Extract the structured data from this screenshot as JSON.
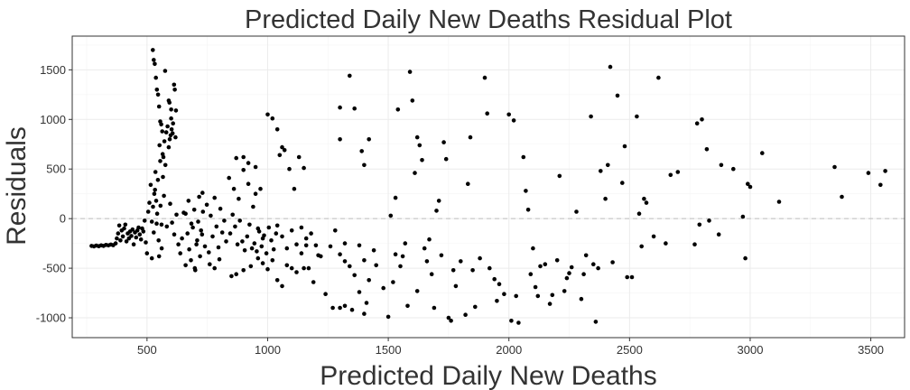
{
  "chart_data": {
    "type": "scatter",
    "title": "Predicted Daily New Deaths Residual Plot",
    "xlabel": "Predicted Daily New Deaths",
    "ylabel": "Residuals",
    "xlim": [
      190,
      3640
    ],
    "ylim": [
      -1200,
      1840
    ],
    "xticks": [
      500,
      1000,
      1500,
      2000,
      2500,
      3000,
      3500
    ],
    "yticks": [
      -1000,
      -500,
      0,
      500,
      1000,
      1500
    ],
    "xtick_labels": [
      "500",
      "1000",
      "1500",
      "2000",
      "2500",
      "3000",
      "3500"
    ],
    "ytick_labels": [
      "-1000",
      "-500",
      "0",
      "500",
      "1000",
      "1500"
    ],
    "reference_line_y": 0,
    "grid": true,
    "point_color": "#000000",
    "points": [
      [
        270,
        -275
      ],
      [
        280,
        -280
      ],
      [
        290,
        -272
      ],
      [
        300,
        -278
      ],
      [
        310,
        -270
      ],
      [
        320,
        -275
      ],
      [
        330,
        -265
      ],
      [
        340,
        -270
      ],
      [
        350,
        -262
      ],
      [
        360,
        -268
      ],
      [
        370,
        -250
      ],
      [
        375,
        -200
      ],
      [
        380,
        -150
      ],
      [
        385,
        -70
      ],
      [
        390,
        -220
      ],
      [
        395,
        -120
      ],
      [
        400,
        -180
      ],
      [
        405,
        -100
      ],
      [
        410,
        -60
      ],
      [
        415,
        -230
      ],
      [
        420,
        -150
      ],
      [
        425,
        -200
      ],
      [
        430,
        -130
      ],
      [
        435,
        -175
      ],
      [
        440,
        -110
      ],
      [
        445,
        -260
      ],
      [
        450,
        -140
      ],
      [
        455,
        -190
      ],
      [
        460,
        -120
      ],
      [
        465,
        -90
      ],
      [
        470,
        -160
      ],
      [
        475,
        -210
      ],
      [
        480,
        -100
      ],
      [
        485,
        -130
      ],
      [
        490,
        -20
      ],
      [
        495,
        -240
      ],
      [
        500,
        -350
      ],
      [
        505,
        70
      ],
      [
        510,
        160
      ],
      [
        515,
        340
      ],
      [
        520,
        -400
      ],
      [
        525,
        120
      ],
      [
        530,
        250
      ],
      [
        535,
        470
      ],
      [
        540,
        -50
      ],
      [
        545,
        390
      ],
      [
        550,
        -380
      ],
      [
        555,
        580
      ],
      [
        560,
        -60
      ],
      [
        565,
        650
      ],
      [
        520,
        -30
      ],
      [
        528,
        -140
      ],
      [
        533,
        290
      ],
      [
        538,
        180
      ],
      [
        542,
        50
      ],
      [
        548,
        -220
      ],
      [
        552,
        740
      ],
      [
        556,
        130
      ],
      [
        561,
        -300
      ],
      [
        566,
        420
      ],
      [
        524,
        1700
      ],
      [
        528,
        1600
      ],
      [
        532,
        1560
      ],
      [
        537,
        1420
      ],
      [
        541,
        1300
      ],
      [
        546,
        1250
      ],
      [
        550,
        1130
      ],
      [
        555,
        980
      ],
      [
        559,
        950
      ],
      [
        563,
        880
      ],
      [
        568,
        620
      ],
      [
        572,
        780
      ],
      [
        576,
        540
      ],
      [
        580,
        870
      ],
      [
        585,
        930
      ],
      [
        590,
        720
      ],
      [
        594,
        800
      ],
      [
        598,
        840
      ],
      [
        602,
        900
      ],
      [
        606,
        860
      ],
      [
        575,
        1490
      ],
      [
        590,
        1190
      ],
      [
        600,
        1100
      ],
      [
        612,
        1350
      ],
      [
        615,
        1300
      ],
      [
        600,
        1010
      ],
      [
        593,
        1170
      ],
      [
        620,
        1090
      ],
      [
        608,
        960
      ],
      [
        618,
        820
      ],
      [
        570,
        230
      ],
      [
        582,
        -80
      ],
      [
        596,
        150
      ],
      [
        604,
        -40
      ],
      [
        613,
        -160
      ],
      [
        622,
        40
      ],
      [
        630,
        -260
      ],
      [
        638,
        -350
      ],
      [
        645,
        -200
      ],
      [
        652,
        60
      ],
      [
        660,
        -470
      ],
      [
        668,
        -150
      ],
      [
        675,
        -310
      ],
      [
        682,
        -420
      ],
      [
        690,
        -90
      ],
      [
        698,
        -500
      ],
      [
        705,
        -260
      ],
      [
        712,
        -30
      ],
      [
        720,
        -380
      ],
      [
        728,
        -160
      ],
      [
        660,
        50
      ],
      [
        672,
        180
      ],
      [
        684,
        -50
      ],
      [
        696,
        90
      ],
      [
        708,
        -220
      ],
      [
        716,
        220
      ],
      [
        724,
        -120
      ],
      [
        732,
        70
      ],
      [
        740,
        -280
      ],
      [
        748,
        140
      ],
      [
        756,
        -340
      ],
      [
        764,
        30
      ],
      [
        772,
        -180
      ],
      [
        780,
        210
      ],
      [
        788,
        -80
      ],
      [
        796,
        -290
      ],
      [
        804,
        100
      ],
      [
        812,
        -140
      ],
      [
        820,
        -20
      ],
      [
        828,
        -230
      ],
      [
        700,
        -520
      ],
      [
        760,
        -460
      ],
      [
        800,
        -410
      ],
      [
        730,
        260
      ],
      [
        780,
        -500
      ],
      [
        850,
        -580
      ],
      [
        870,
        -560
      ],
      [
        900,
        -520
      ],
      [
        930,
        -480
      ],
      [
        960,
        -400
      ],
      [
        840,
        410
      ],
      [
        860,
        300
      ],
      [
        880,
        200
      ],
      [
        900,
        490
      ],
      [
        920,
        350
      ],
      [
        940,
        120
      ],
      [
        950,
        250
      ],
      [
        960,
        -100
      ],
      [
        970,
        300
      ],
      [
        980,
        -200
      ],
      [
        845,
        -150
      ],
      [
        855,
        40
      ],
      [
        865,
        -80
      ],
      [
        875,
        -260
      ],
      [
        885,
        -20
      ],
      [
        895,
        -230
      ],
      [
        905,
        -320
      ],
      [
        915,
        -180
      ],
      [
        925,
        -60
      ],
      [
        935,
        -300
      ],
      [
        945,
        -250
      ],
      [
        955,
        -330
      ],
      [
        965,
        -130
      ],
      [
        975,
        -280
      ],
      [
        985,
        -170
      ],
      [
        995,
        -350
      ],
      [
        1005,
        -90
      ],
      [
        1015,
        -220
      ],
      [
        1025,
        -310
      ],
      [
        1035,
        -150
      ],
      [
        870,
        610
      ],
      [
        900,
        620
      ],
      [
        920,
        560
      ],
      [
        950,
        520
      ],
      [
        980,
        -450
      ],
      [
        1000,
        1050
      ],
      [
        1020,
        1010
      ],
      [
        1040,
        900
      ],
      [
        1050,
        640
      ],
      [
        1060,
        720
      ],
      [
        1000,
        -510
      ],
      [
        1020,
        -420
      ],
      [
        1040,
        -620
      ],
      [
        1060,
        -680
      ],
      [
        1080,
        -470
      ],
      [
        1100,
        -500
      ],
      [
        1120,
        -540
      ],
      [
        1140,
        -350
      ],
      [
        1150,
        -500
      ],
      [
        1160,
        -270
      ],
      [
        1040,
        -70
      ],
      [
        1060,
        -180
      ],
      [
        1080,
        -300
      ],
      [
        1100,
        -120
      ],
      [
        1120,
        -260
      ],
      [
        1140,
        -90
      ],
      [
        1160,
        -200
      ],
      [
        1180,
        -150
      ],
      [
        1200,
        -270
      ],
      [
        1220,
        -380
      ],
      [
        1070,
        690
      ],
      [
        1090,
        500
      ],
      [
        1110,
        300
      ],
      [
        1130,
        620
      ],
      [
        1150,
        510
      ],
      [
        1170,
        -500
      ],
      [
        1190,
        -640
      ],
      [
        1210,
        -370
      ],
      [
        1240,
        -760
      ],
      [
        1270,
        -900
      ],
      [
        1300,
        1120
      ],
      [
        1300,
        800
      ],
      [
        1320,
        -430
      ],
      [
        1340,
        1440
      ],
      [
        1360,
        1110
      ],
      [
        1380,
        -740
      ],
      [
        1390,
        680
      ],
      [
        1400,
        540
      ],
      [
        1410,
        -850
      ],
      [
        1420,
        800
      ],
      [
        1260,
        -280
      ],
      [
        1280,
        -120
      ],
      [
        1300,
        -360
      ],
      [
        1320,
        -250
      ],
      [
        1340,
        -480
      ],
      [
        1360,
        -570
      ],
      [
        1380,
        -270
      ],
      [
        1400,
        -420
      ],
      [
        1420,
        -620
      ],
      [
        1440,
        -320
      ],
      [
        1300,
        -900
      ],
      [
        1320,
        -880
      ],
      [
        1350,
        -920
      ],
      [
        1400,
        -960
      ],
      [
        1450,
        -470
      ],
      [
        1480,
        -700
      ],
      [
        1500,
        -990
      ],
      [
        1510,
        30
      ],
      [
        1520,
        -640
      ],
      [
        1530,
        -360
      ],
      [
        1530,
        210
      ],
      [
        1540,
        1100
      ],
      [
        1550,
        -480
      ],
      [
        1560,
        -380
      ],
      [
        1570,
        -250
      ],
      [
        1580,
        -880
      ],
      [
        1590,
        1480
      ],
      [
        1600,
        1190
      ],
      [
        1610,
        460
      ],
      [
        1620,
        -730
      ],
      [
        1620,
        820
      ],
      [
        1630,
        740
      ],
      [
        1640,
        590
      ],
      [
        1650,
        -300
      ],
      [
        1660,
        -430
      ],
      [
        1670,
        -210
      ],
      [
        1680,
        -560
      ],
      [
        1690,
        -900
      ],
      [
        1700,
        80
      ],
      [
        1710,
        180
      ],
      [
        1720,
        -370
      ],
      [
        1730,
        770
      ],
      [
        1740,
        600
      ],
      [
        1750,
        -1000
      ],
      [
        1760,
        -1030
      ],
      [
        1770,
        -520
      ],
      [
        1780,
        -680
      ],
      [
        1800,
        -430
      ],
      [
        1820,
        -970
      ],
      [
        1830,
        350
      ],
      [
        1840,
        820
      ],
      [
        1850,
        -520
      ],
      [
        1860,
        -890
      ],
      [
        1880,
        -400
      ],
      [
        1900,
        1420
      ],
      [
        1910,
        1060
      ],
      [
        1920,
        -500
      ],
      [
        1940,
        -610
      ],
      [
        1950,
        -830
      ],
      [
        1960,
        -660
      ],
      [
        1980,
        -760
      ],
      [
        2000,
        1050
      ],
      [
        2010,
        -1030
      ],
      [
        2020,
        990
      ],
      [
        2030,
        -780
      ],
      [
        2040,
        -1050
      ],
      [
        2060,
        620
      ],
      [
        2070,
        280
      ],
      [
        2080,
        90
      ],
      [
        2090,
        -560
      ],
      [
        2100,
        -300
      ],
      [
        2110,
        -690
      ],
      [
        2120,
        -780
      ],
      [
        2130,
        -480
      ],
      [
        2150,
        -460
      ],
      [
        2170,
        -860
      ],
      [
        2180,
        -770
      ],
      [
        2200,
        -420
      ],
      [
        2210,
        430
      ],
      [
        2230,
        -730
      ],
      [
        2240,
        -600
      ],
      [
        2250,
        -550
      ],
      [
        2260,
        -490
      ],
      [
        2280,
        70
      ],
      [
        2300,
        -810
      ],
      [
        2310,
        -560
      ],
      [
        2320,
        -370
      ],
      [
        2340,
        1030
      ],
      [
        2350,
        -460
      ],
      [
        2360,
        -1040
      ],
      [
        2370,
        -500
      ],
      [
        2380,
        480
      ],
      [
        2400,
        200
      ],
      [
        2410,
        540
      ],
      [
        2420,
        1530
      ],
      [
        2430,
        -440
      ],
      [
        2450,
        1240
      ],
      [
        2470,
        360
      ],
      [
        2480,
        730
      ],
      [
        2490,
        -590
      ],
      [
        2510,
        -590
      ],
      [
        2530,
        1030
      ],
      [
        2540,
        50
      ],
      [
        2550,
        -280
      ],
      [
        2560,
        200
      ],
      [
        2570,
        160
      ],
      [
        2600,
        -180
      ],
      [
        2620,
        1420
      ],
      [
        2650,
        -250
      ],
      [
        2670,
        440
      ],
      [
        2700,
        470
      ],
      [
        2770,
        -260
      ],
      [
        2780,
        960
      ],
      [
        2790,
        -60
      ],
      [
        2800,
        1000
      ],
      [
        2820,
        700
      ],
      [
        2830,
        -20
      ],
      [
        2870,
        -160
      ],
      [
        2880,
        540
      ],
      [
        2930,
        500
      ],
      [
        2970,
        20
      ],
      [
        2980,
        -400
      ],
      [
        2990,
        350
      ],
      [
        3000,
        320
      ],
      [
        3050,
        660
      ],
      [
        3120,
        170
      ],
      [
        3350,
        520
      ],
      [
        3380,
        220
      ],
      [
        3490,
        460
      ],
      [
        3540,
        340
      ],
      [
        3560,
        480
      ]
    ]
  }
}
